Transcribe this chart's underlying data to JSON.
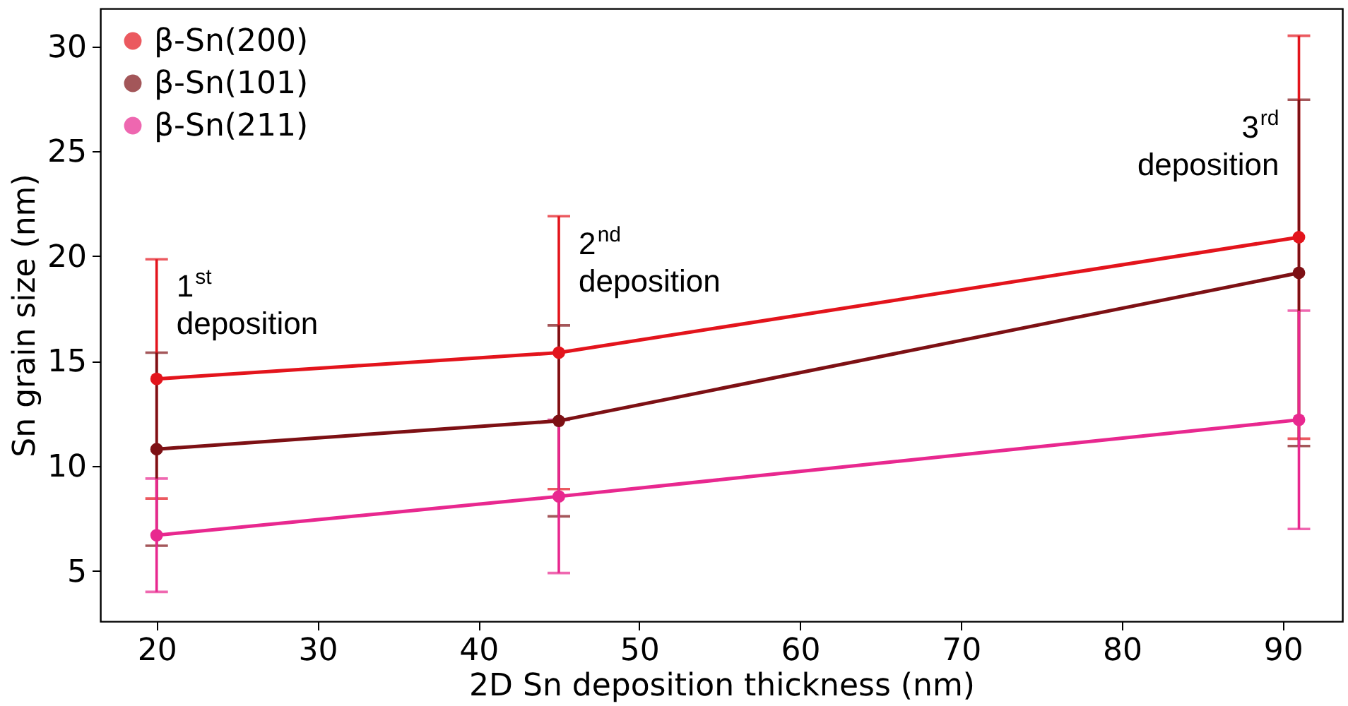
{
  "chart_data": {
    "type": "line",
    "xlabel": "2D Sn deposition thickness (nm)",
    "ylabel": "Sn grain size (nm)",
    "xlim": [
      16.5,
      93.7
    ],
    "xticks": [
      20,
      30,
      40,
      50,
      60,
      70,
      80,
      90
    ],
    "ylim": [
      2.6,
      31.8
    ],
    "yticks": [
      5,
      10,
      15,
      20,
      25,
      30
    ],
    "x": [
      20,
      45,
      91
    ],
    "series": [
      {
        "name": "β-Sn(200)",
        "color": "#e3141c",
        "values": [
          14.15,
          15.4,
          20.9
        ],
        "errors": [
          5.7,
          6.5,
          9.6
        ]
      },
      {
        "name": "β-Sn(101)",
        "color": "#7d1014",
        "values": [
          10.8,
          12.15,
          19.2
        ],
        "errors": [
          4.6,
          4.55,
          8.25
        ]
      },
      {
        "name": "β-Sn(211)",
        "color": "#e8288f",
        "values": [
          6.7,
          8.55,
          12.2
        ],
        "errors": [
          2.7,
          3.65,
          5.2
        ]
      }
    ],
    "annotations": [
      {
        "text": "1$^{st}$ deposition",
        "x": 20,
        "y": 19.9
      },
      {
        "text": "2$^{nd}$ deposition",
        "x": 45,
        "y": 21.9
      },
      {
        "text": "3$^{rd}$ deposition",
        "x": 91,
        "y": 27.45
      }
    ],
    "legend": "top left",
    "grid": false,
    "marker": "circle",
    "line_style": "solid"
  }
}
